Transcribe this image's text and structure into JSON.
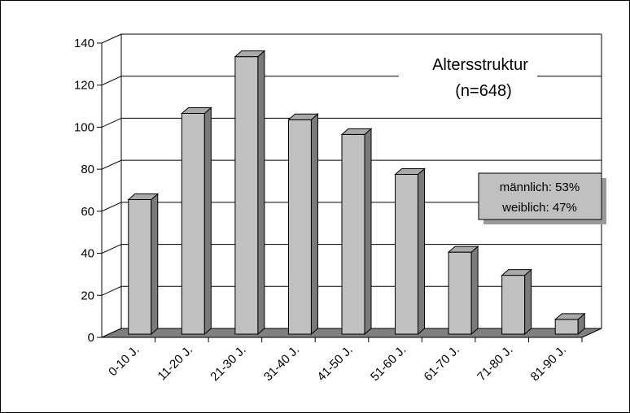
{
  "chart_data": {
    "type": "bar",
    "title": "Altersstruktur",
    "subtitle": "(n=648)",
    "categories": [
      "0-10 J.",
      "11-20 J.",
      "21-30 J.",
      "31-40 J.",
      "41-50 J.",
      "51-60 J.",
      "61-70 J.",
      "71-80 J.",
      "81-90 J."
    ],
    "values": [
      64,
      105,
      132,
      102,
      95,
      76,
      39,
      28,
      7
    ],
    "ylim": [
      0,
      140
    ],
    "yticks": [
      0,
      20,
      40,
      60,
      80,
      100,
      120,
      140
    ],
    "xlabel": "",
    "ylabel": "",
    "grid": true,
    "bar_color": "#c0c0c0",
    "bar_side_color": "#7a7a7a",
    "bar_top_color": "#a9a9a9",
    "floor_color": "#808080",
    "annotation": {
      "lines": [
        "männlich: 53%",
        "weiblich: 47%"
      ],
      "placement": "right"
    }
  }
}
